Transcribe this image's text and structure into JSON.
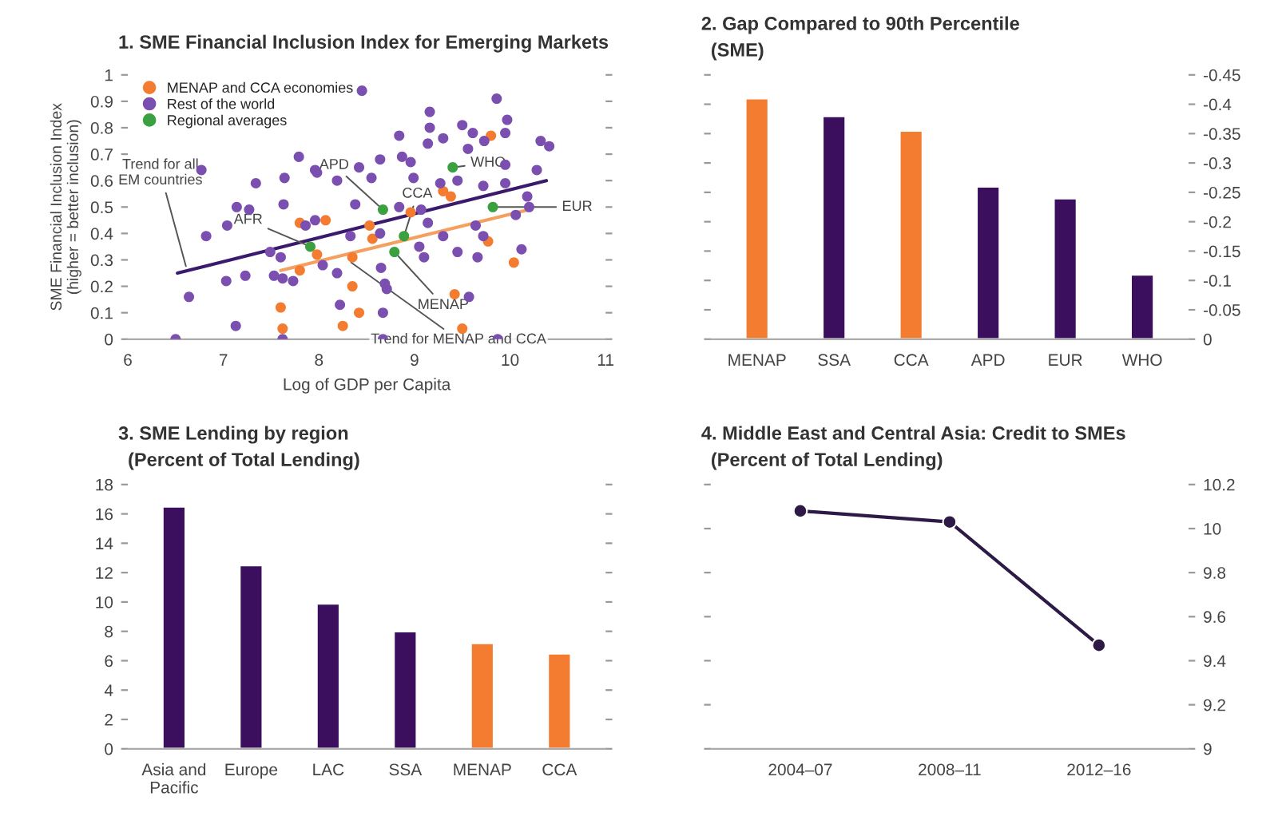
{
  "chart_data": [
    {
      "type": "scatter",
      "title": "1. SME Financial Inclusion Index for Emerging Markets",
      "xlabel": "Log of GDP per Capita",
      "ylabel": "SME Financial Inclusion Index\n(higher = better inclusion)",
      "xlim": [
        6,
        11
      ],
      "xticks": [
        6,
        7,
        8,
        9,
        10,
        11
      ],
      "ylim": [
        0,
        1
      ],
      "yticks": [
        0,
        0.1,
        0.2,
        0.3,
        0.4,
        0.5,
        0.6,
        0.7,
        0.8,
        0.9,
        1
      ],
      "legend": "top left",
      "marker": "circle",
      "grid": false,
      "series": [
        {
          "name": "MENAP and CCA economies",
          "color": "#f47c30",
          "x": [
            7.62,
            7.8,
            7.8,
            7.6,
            8.07,
            8.53,
            9.8,
            9.3,
            9.38,
            8.96,
            9.77,
            8.56,
            10.04,
            8.35,
            7.98,
            8.35,
            9.42,
            8.42,
            8.25,
            9.5
          ],
          "values": [
            0.04,
            0.44,
            0.26,
            0.12,
            0.45,
            0.43,
            0.77,
            0.56,
            0.54,
            0.48,
            0.37,
            0.38,
            0.29,
            0.31,
            0.32,
            0.2,
            0.17,
            0.1,
            0.05,
            0.04
          ]
        },
        {
          "name": "Rest of the world",
          "color": "#7b4fb0",
          "x": [
            6.77,
            7.79,
            7.98,
            7.34,
            7.64,
            7.14,
            7.27,
            7.63,
            6.82,
            7.04,
            7.49,
            7.6,
            7.03,
            7.23,
            7.53,
            7.62,
            7.73,
            6.64,
            7.13,
            6.5,
            7.62,
            7.86,
            7.96,
            8.45,
            9.86,
            9.16,
            9.97,
            9.16,
            9.3,
            9.5,
            9.61,
            9.95,
            8.84,
            9.14,
            9.73,
            10.32,
            10.41,
            9.56,
            8.87,
            8.96,
            8.64,
            8.42,
            7.96,
            9.95,
            10.28,
            8.19,
            8.55,
            8.99,
            9.27,
            9.45,
            9.72,
            9.95,
            10.18,
            10.2,
            10.06,
            8.38,
            8.84,
            9.07,
            9.14,
            8.33,
            8.64,
            9.64,
            9.72,
            8.65,
            9.05,
            9.1,
            9.3,
            9.45,
            9.66,
            10.12,
            8.04,
            8.19,
            8.69,
            8.71,
            9.57,
            8.22,
            8.67,
            8.67,
            9.87
          ],
          "values": [
            0.64,
            0.69,
            0.63,
            0.59,
            0.61,
            0.5,
            0.49,
            0.51,
            0.39,
            0.43,
            0.33,
            0.31,
            0.22,
            0.24,
            0.24,
            0.23,
            0.22,
            0.16,
            0.05,
            0,
            0,
            0.43,
            0.45,
            0.94,
            0.91,
            0.86,
            0.83,
            0.8,
            0.76,
            0.81,
            0.78,
            0.78,
            0.77,
            0.74,
            0.75,
            0.75,
            0.73,
            0.72,
            0.69,
            0.67,
            0.68,
            0.65,
            0.64,
            0.66,
            0.64,
            0.6,
            0.61,
            0.61,
            0.59,
            0.6,
            0.58,
            0.59,
            0.54,
            0.5,
            0.47,
            0.51,
            0.5,
            0.49,
            0.44,
            0.39,
            0.4,
            0.43,
            0.39,
            0.27,
            0.35,
            0.31,
            0.39,
            0.33,
            0.31,
            0.34,
            0.28,
            0.25,
            0.21,
            0.19,
            0.16,
            0.13,
            0.1,
            0,
            0
          ]
        },
        {
          "name": "Regional averages",
          "color": "#3aa040",
          "x": [
            7.91,
            8.67,
            8.89,
            8.79,
            9.4,
            9.82
          ],
          "values": [
            0.35,
            0.49,
            0.39,
            0.33,
            0.65,
            0.5
          ]
        },
        {
          "type": "line",
          "marker": "none",
          "color": "#3b1a6e",
          "x": [
            6.52,
            10.38
          ],
          "values": [
            0.25,
            0.6
          ]
        },
        {
          "type": "line",
          "marker": "none",
          "color": "#f5a060",
          "x": [
            7.6,
            10.2
          ],
          "values": [
            0.26,
            0.49
          ]
        }
      ],
      "annotations": [
        {
          "text": "AFR",
          "x": 7.91,
          "y": 0.35
        },
        {
          "text": "APD",
          "x": 8.67,
          "y": 0.49
        },
        {
          "text": "CCA",
          "x": 8.89,
          "y": 0.39
        },
        {
          "text": "MENAP",
          "x": 8.79,
          "y": 0.33
        },
        {
          "text": "WHO",
          "x": 9.4,
          "y": 0.65
        },
        {
          "text": "EUR",
          "x": 9.82,
          "y": 0.5
        },
        {
          "text": "Trend for all\nEM countries",
          "x": 6.62,
          "y": 0.26
        },
        {
          "text": "Trend for MENAP and CCA",
          "x": 8.3,
          "y": 0.3
        }
      ]
    },
    {
      "type": "bar",
      "title": "2. Gap Compared to 90th Percentile",
      "subtitle": "(SME)",
      "categories": [
        "MENAP",
        "SSA",
        "CCA",
        "APD",
        "EUR",
        "WHO"
      ],
      "series": [
        {
          "axis": "y2",
          "colors": [
            "#f47c30",
            "#3b0f5e",
            "#f47c30",
            "#3b0f5e",
            "#3b0f5e",
            "#3b0f5e"
          ],
          "values": [
            -0.41,
            -0.38,
            -0.355,
            -0.26,
            -0.24,
            -0.11
          ]
        }
      ],
      "y2lim": [
        0,
        -0.45
      ],
      "y2ticks": [
        0,
        -0.05,
        -0.1,
        -0.15,
        -0.2,
        -0.25,
        -0.3,
        -0.35,
        -0.4,
        -0.45
      ],
      "grid": false
    },
    {
      "type": "bar",
      "title": "3. SME Lending by region",
      "subtitle": "(Percent of Total Lending)",
      "categories": [
        "Asia and\nPacific",
        "Europe",
        "LAC",
        "SSA",
        "MENAP",
        "CCA"
      ],
      "series": [
        {
          "colors": [
            "#3b0f5e",
            "#3b0f5e",
            "#3b0f5e",
            "#3b0f5e",
            "#f47c30",
            "#f47c30"
          ],
          "values": [
            16.5,
            12.5,
            9.9,
            8.0,
            7.2,
            6.5
          ]
        }
      ],
      "ylim": [
        0,
        18
      ],
      "yticks": [
        0,
        2,
        4,
        6,
        8,
        10,
        12,
        14,
        16,
        18
      ],
      "grid": false
    },
    {
      "type": "line",
      "title": "4. Middle East and Central Asia: Credit to SMEs",
      "subtitle": "(Percent of Total Lending)",
      "categories": [
        "2004–07",
        "2008–11",
        "2012–16"
      ],
      "series": [
        {
          "axis": "y2",
          "color": "#2e1a47",
          "values": [
            10.08,
            10.03,
            9.47
          ]
        }
      ],
      "y2lim": [
        9,
        10.2
      ],
      "y2ticks": [
        9,
        9.2,
        9.4,
        9.6,
        9.8,
        10,
        10.2
      ],
      "marker": "circle",
      "line_style": "solid",
      "grid": false
    }
  ]
}
